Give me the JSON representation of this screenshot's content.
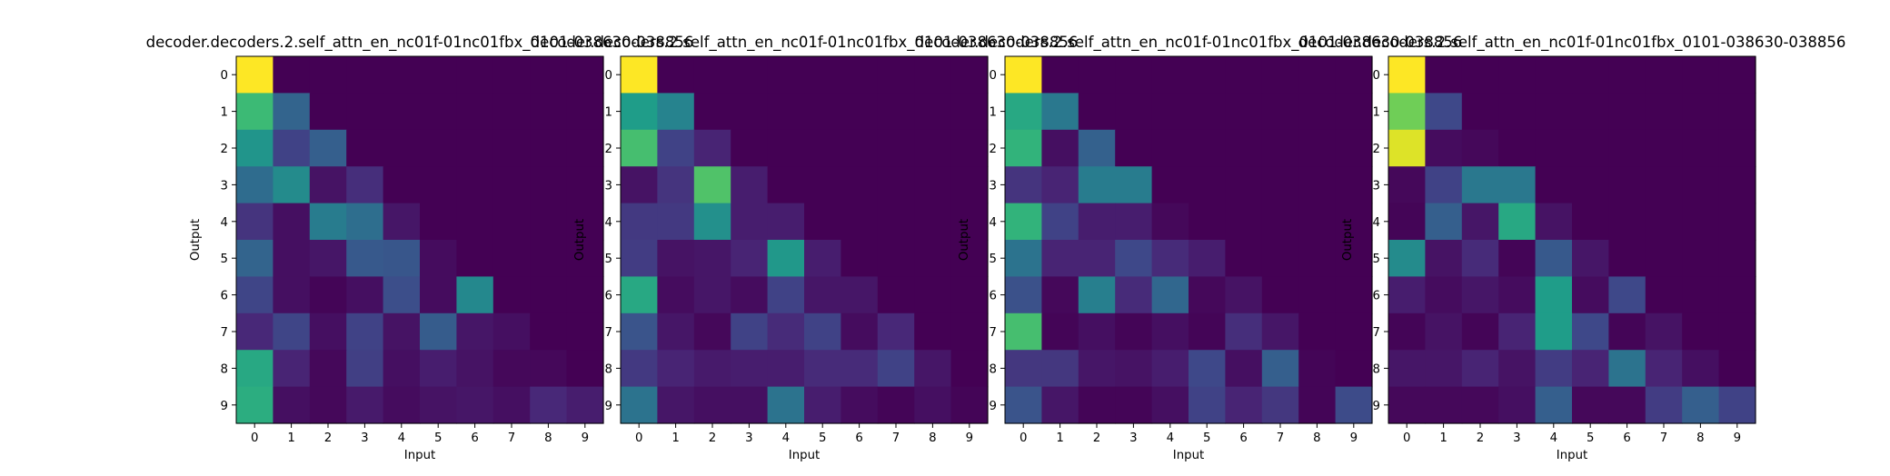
{
  "figure": {
    "background": "#ffffff"
  },
  "chart_data": [
    {
      "type": "heatmap",
      "title": "decoder.decoders.2.self_attn_en_nc01f-01nc01fbx_0101-038630-038856",
      "xlabel": "Input",
      "ylabel": "Output",
      "x_ticks": [
        "0",
        "1",
        "2",
        "3",
        "4",
        "5",
        "6",
        "7",
        "8",
        "9"
      ],
      "y_ticks": [
        "0",
        "1",
        "2",
        "3",
        "4",
        "5",
        "6",
        "7",
        "8",
        "9"
      ],
      "colormap": "viridis",
      "grid": false,
      "values": [
        [
          1.0,
          0,
          0,
          0,
          0,
          0,
          0,
          0,
          0,
          0
        ],
        [
          0.68,
          0.32,
          0,
          0,
          0,
          0,
          0,
          0,
          0,
          0
        ],
        [
          0.52,
          0.2,
          0.3,
          0,
          0,
          0,
          0,
          0,
          0,
          0
        ],
        [
          0.35,
          0.48,
          0.05,
          0.13,
          0,
          0,
          0,
          0,
          0,
          0
        ],
        [
          0.15,
          0.04,
          0.42,
          0.36,
          0.06,
          0,
          0,
          0,
          0,
          0
        ],
        [
          0.32,
          0.04,
          0.06,
          0.28,
          0.27,
          0.03,
          0,
          0,
          0,
          0
        ],
        [
          0.21,
          0.04,
          0.01,
          0.04,
          0.24,
          0.03,
          0.47,
          0,
          0,
          0
        ],
        [
          0.11,
          0.21,
          0.04,
          0.2,
          0.05,
          0.29,
          0.06,
          0.04,
          0,
          0
        ],
        [
          0.6,
          0.1,
          0.02,
          0.19,
          0.04,
          0.08,
          0.05,
          0.02,
          0.02,
          0
        ],
        [
          0.62,
          0.04,
          0.02,
          0.07,
          0.03,
          0.05,
          0.06,
          0.04,
          0.11,
          0.08
        ]
      ]
    },
    {
      "type": "heatmap",
      "title": "decoder.decoders.2.self_attn_en_nc01f-01nc01fbx_0101-038630-038856",
      "xlabel": "Input",
      "ylabel": "Output",
      "x_ticks": [
        "0",
        "1",
        "2",
        "3",
        "4",
        "5",
        "6",
        "7",
        "8",
        "9"
      ],
      "y_ticks": [
        "0",
        "1",
        "2",
        "3",
        "4",
        "5",
        "6",
        "7",
        "8",
        "9"
      ],
      "colormap": "viridis",
      "grid": false,
      "values": [
        [
          1.0,
          0,
          0,
          0,
          0,
          0,
          0,
          0,
          0,
          0
        ],
        [
          0.55,
          0.45,
          0,
          0,
          0,
          0,
          0,
          0,
          0,
          0
        ],
        [
          0.7,
          0.2,
          0.1,
          0,
          0,
          0,
          0,
          0,
          0,
          0
        ],
        [
          0.05,
          0.15,
          0.72,
          0.08,
          0,
          0,
          0,
          0,
          0,
          0
        ],
        [
          0.17,
          0.17,
          0.5,
          0.08,
          0.08,
          0,
          0,
          0,
          0,
          0
        ],
        [
          0.18,
          0.05,
          0.06,
          0.1,
          0.53,
          0.08,
          0,
          0,
          0,
          0
        ],
        [
          0.6,
          0.03,
          0.06,
          0.03,
          0.2,
          0.06,
          0.06,
          0,
          0,
          0
        ],
        [
          0.26,
          0.06,
          0.02,
          0.2,
          0.12,
          0.2,
          0.03,
          0.11,
          0,
          0
        ],
        [
          0.17,
          0.1,
          0.07,
          0.08,
          0.08,
          0.12,
          0.12,
          0.2,
          0.06,
          0
        ],
        [
          0.38,
          0.06,
          0.04,
          0.04,
          0.38,
          0.08,
          0.03,
          0.01,
          0.04,
          0.01
        ]
      ]
    },
    {
      "type": "heatmap",
      "title": "decoder.decoders.2.self_attn_en_nc01f-01nc01fbx_0101-038630-038856",
      "xlabel": "Input",
      "ylabel": "Output",
      "x_ticks": [
        "0",
        "1",
        "2",
        "3",
        "4",
        "5",
        "6",
        "7",
        "8",
        "9"
      ],
      "y_ticks": [
        "0",
        "1",
        "2",
        "3",
        "4",
        "5",
        "6",
        "7",
        "8",
        "9"
      ],
      "colormap": "viridis",
      "grid": false,
      "values": [
        [
          1.0,
          0,
          0,
          0,
          0,
          0,
          0,
          0,
          0,
          0
        ],
        [
          0.6,
          0.4,
          0,
          0,
          0,
          0,
          0,
          0,
          0,
          0
        ],
        [
          0.65,
          0.04,
          0.31,
          0,
          0,
          0,
          0,
          0,
          0,
          0
        ],
        [
          0.15,
          0.1,
          0.42,
          0.42,
          0,
          0,
          0,
          0,
          0,
          0
        ],
        [
          0.65,
          0.2,
          0.08,
          0.08,
          0.02,
          0,
          0,
          0,
          0,
          0
        ],
        [
          0.38,
          0.1,
          0.1,
          0.22,
          0.12,
          0.08,
          0,
          0,
          0,
          0
        ],
        [
          0.25,
          0.02,
          0.43,
          0.12,
          0.33,
          0.02,
          0.05,
          0,
          0,
          0
        ],
        [
          0.7,
          0.01,
          0.04,
          0.01,
          0.04,
          0.01,
          0.13,
          0.06,
          0,
          0
        ],
        [
          0.16,
          0.16,
          0.06,
          0.05,
          0.08,
          0.22,
          0.04,
          0.3,
          0.01,
          0
        ],
        [
          0.26,
          0.06,
          0.01,
          0.01,
          0.04,
          0.2,
          0.1,
          0.16,
          0.01,
          0.23
        ]
      ]
    },
    {
      "type": "heatmap",
      "title": "decoder.decoders.2.self_attn_en_nc01f-01nc01fbx_0101-038630-038856",
      "xlabel": "Input",
      "ylabel": "Output",
      "x_ticks": [
        "0",
        "1",
        "2",
        "3",
        "4",
        "5",
        "6",
        "7",
        "8",
        "9"
      ],
      "y_ticks": [
        "0",
        "1",
        "2",
        "3",
        "4",
        "5",
        "6",
        "7",
        "8",
        "9"
      ],
      "colormap": "viridis",
      "grid": false,
      "values": [
        [
          1.0,
          0,
          0,
          0,
          0,
          0,
          0,
          0,
          0,
          0
        ],
        [
          0.78,
          0.22,
          0,
          0,
          0,
          0,
          0,
          0,
          0,
          0
        ],
        [
          0.95,
          0.03,
          0.02,
          0,
          0,
          0,
          0,
          0,
          0,
          0
        ],
        [
          0.02,
          0.2,
          0.4,
          0.4,
          0,
          0,
          0,
          0,
          0,
          0
        ],
        [
          0.01,
          0.3,
          0.06,
          0.6,
          0.05,
          0,
          0,
          0,
          0,
          0
        ],
        [
          0.48,
          0.05,
          0.12,
          0.01,
          0.28,
          0.06,
          0,
          0,
          0,
          0
        ],
        [
          0.08,
          0.03,
          0.06,
          0.03,
          0.55,
          0.03,
          0.22,
          0,
          0,
          0
        ],
        [
          0.01,
          0.05,
          0.01,
          0.1,
          0.55,
          0.22,
          0.01,
          0.05,
          0,
          0
        ],
        [
          0.06,
          0.06,
          0.1,
          0.05,
          0.18,
          0.1,
          0.38,
          0.1,
          0.04,
          0
        ],
        [
          0.02,
          0.02,
          0.02,
          0.04,
          0.3,
          0.02,
          0.02,
          0.18,
          0.3,
          0.2
        ]
      ]
    }
  ]
}
